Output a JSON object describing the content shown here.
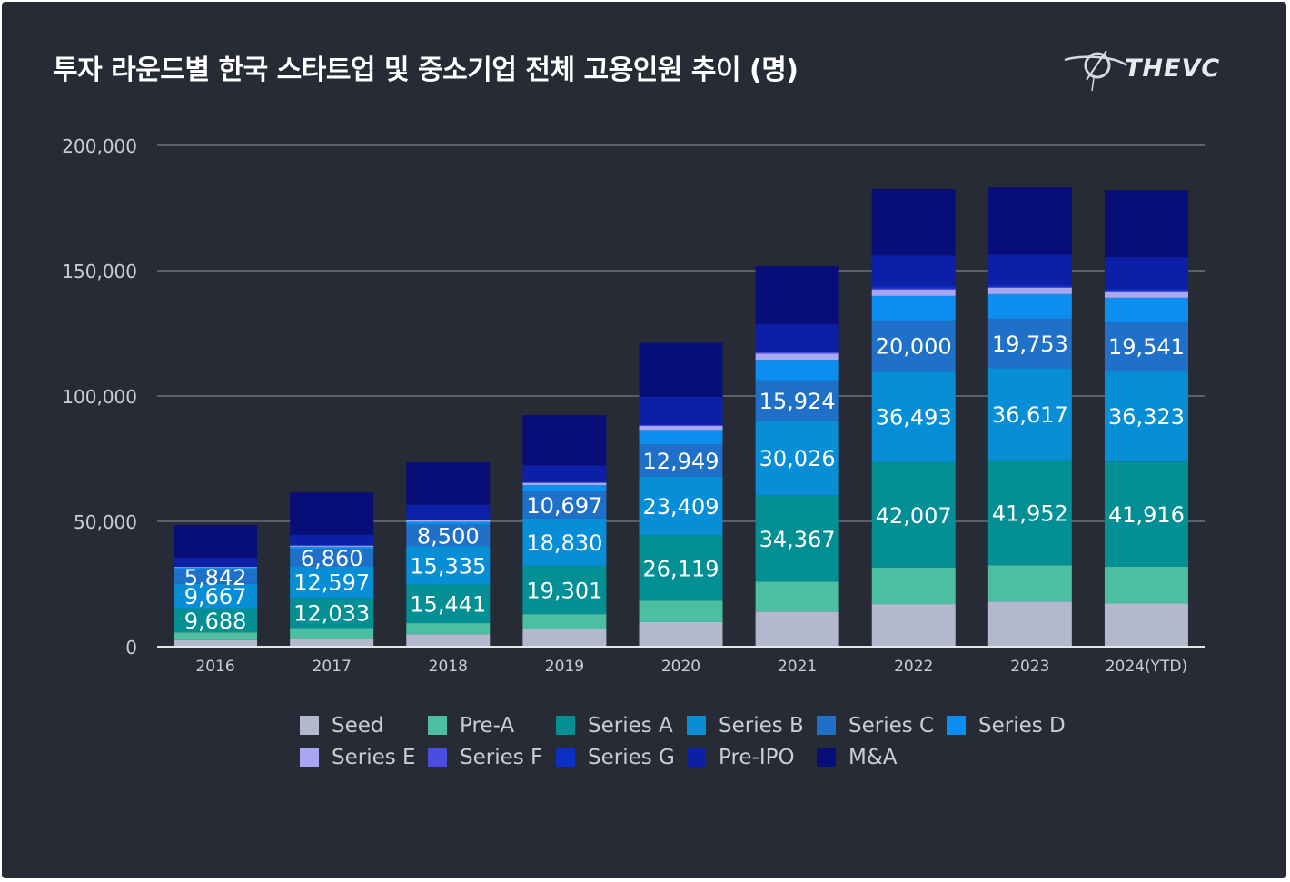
{
  "title": "투자 라운드별 한국 스타트업 및 중소기업 전체 고용인원 추이 (명)",
  "logo": {
    "text": "THEVC",
    "icon": "planet-orbit-icon"
  },
  "colors": {
    "background": "#262b36",
    "grid": "#8e939e",
    "axis_text": "#c9cdd6",
    "data_label": "#ffffff",
    "series": [
      "#b2b9cc",
      "#4cbfa3",
      "#048f94",
      "#078ed7",
      "#1f70c8",
      "#0c8ef0",
      "#a7a7f2",
      "#4b4de0",
      "#0e2fc6",
      "#0b20a6",
      "#070e78"
    ]
  },
  "chart_data": {
    "type": "bar",
    "stacked": true,
    "title": "투자 라운드별 한국 스타트업 및 중소기업 전체 고용인원 추이 (명)",
    "xlabel": "",
    "ylabel": "",
    "ylim": [
      0,
      200000
    ],
    "yticks": [
      0,
      50000,
      100000,
      150000,
      200000
    ],
    "ytick_labels": [
      "0",
      "50,000",
      "100,000",
      "150,000",
      "200,000"
    ],
    "grid": true,
    "legend_position": "bottom",
    "categories": [
      "2016",
      "2017",
      "2018",
      "2019",
      "2020",
      "2021",
      "2022",
      "2023",
      "2024(YTD)"
    ],
    "series": [
      {
        "name": "Seed",
        "values": [
          2600,
          3400,
          5000,
          6900,
          9800,
          14000,
          17000,
          18000,
          17200
        ],
        "labeled": false
      },
      {
        "name": "Pre-A",
        "values": [
          3100,
          4100,
          4400,
          6100,
          8500,
          11900,
          14600,
          14500,
          14700
        ],
        "labeled": false
      },
      {
        "name": "Series A",
        "values": [
          9688,
          12033,
          15441,
          19301,
          26119,
          34367,
          42007,
          41952,
          41916
        ],
        "labeled": true
      },
      {
        "name": "Series B",
        "values": [
          9667,
          12597,
          15335,
          18830,
          23409,
          30026,
          36493,
          36617,
          36323
        ],
        "labeled": true
      },
      {
        "name": "Series C",
        "values": [
          5842,
          6860,
          8500,
          10697,
          12949,
          15924,
          20000,
          19753,
          19541
        ],
        "labeled": true
      },
      {
        "name": "Series D",
        "values": [
          600,
          900,
          1200,
          2600,
          5700,
          8200,
          9800,
          9800,
          9500
        ],
        "labeled": false
      },
      {
        "name": "Series E",
        "values": [
          300,
          400,
          500,
          900,
          1600,
          2500,
          2500,
          2500,
          2500
        ],
        "labeled": false
      },
      {
        "name": "Series F",
        "values": [
          100,
          200,
          300,
          300,
          300,
          500,
          500,
          400,
          400
        ],
        "labeled": false
      },
      {
        "name": "Series G",
        "values": [
          100,
          100,
          200,
          200,
          200,
          300,
          1000,
          800,
          700
        ],
        "labeled": false
      },
      {
        "name": "Pre-IPO",
        "values": [
          3500,
          4100,
          5700,
          6500,
          11100,
          10900,
          12100,
          12000,
          12600
        ],
        "labeled": false
      },
      {
        "name": "M&A",
        "values": [
          13000,
          16800,
          17000,
          20000,
          21500,
          23200,
          26600,
          26900,
          26800
        ],
        "labeled": false
      }
    ],
    "data_labels": [
      [
        "9,688",
        "9,667",
        "5,842"
      ],
      [
        "12,033",
        "12,597",
        "6,860"
      ],
      [
        "15,441",
        "15,335",
        "8,500"
      ],
      [
        "19,301",
        "18,830",
        "10,697"
      ],
      [
        "26,119",
        "23,409",
        "12,949"
      ],
      [
        "34,367",
        "30,026",
        "15,924"
      ],
      [
        "42,007",
        "36,493",
        "20,000"
      ],
      [
        "41,952",
        "36,617",
        "19,753"
      ],
      [
        "41,916",
        "36,323",
        "19,541"
      ]
    ]
  },
  "legend": {
    "items": [
      "Seed",
      "Pre-A",
      "Series A",
      "Series B",
      "Series C",
      "Series D",
      "Series E",
      "Series F",
      "Series G",
      "Pre-IPO",
      "M&A"
    ]
  }
}
